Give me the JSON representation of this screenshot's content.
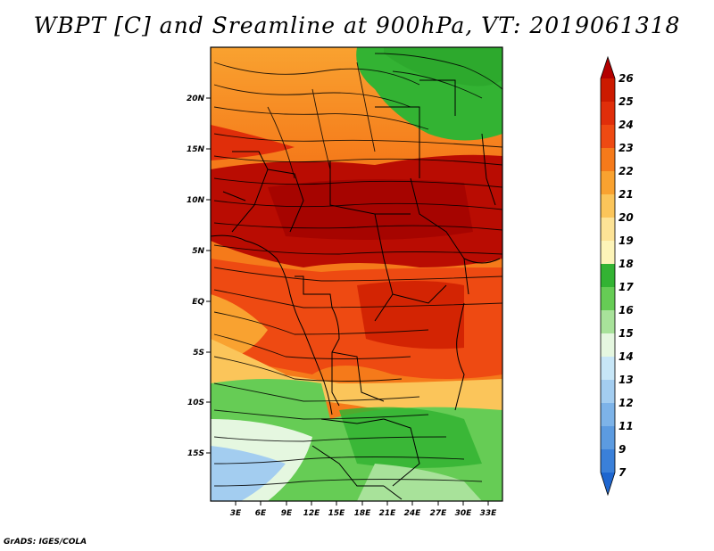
{
  "title": "WBPT [C] and Sreamline at 900hPa, VT: 2019061318",
  "footer": "GrADS: IGES/COLA",
  "map": {
    "field": "Wet-bulb potential temperature",
    "units": "C",
    "level": "900hPa",
    "valid_time": "2019061318",
    "lat_labels": [
      "20N",
      "15N",
      "10N",
      "5N",
      "EQ",
      "5S",
      "10S",
      "15S"
    ],
    "lon_labels": [
      "3E",
      "6E",
      "9E",
      "12E",
      "15E",
      "18E",
      "21E",
      "24E",
      "27E",
      "30E",
      "33E"
    ]
  },
  "colorbar": {
    "labels": [
      "26",
      "25",
      "24",
      "23",
      "22",
      "21",
      "20",
      "19",
      "18",
      "17",
      "16",
      "15",
      "14",
      "13",
      "12",
      "11",
      "9",
      "7"
    ],
    "colors": [
      "#b30000",
      "#cc1a00",
      "#e02e0a",
      "#ee4a12",
      "#f57a1a",
      "#f9a230",
      "#fbc55a",
      "#fde396",
      "#fdf4b8",
      "#33b333",
      "#66cc55",
      "#a8e29a",
      "#e5f7e0",
      "#c7e6f7",
      "#a3cdf0",
      "#7db3e8",
      "#5c9be0",
      "#3a80d9",
      "#1e66cf"
    ]
  }
}
